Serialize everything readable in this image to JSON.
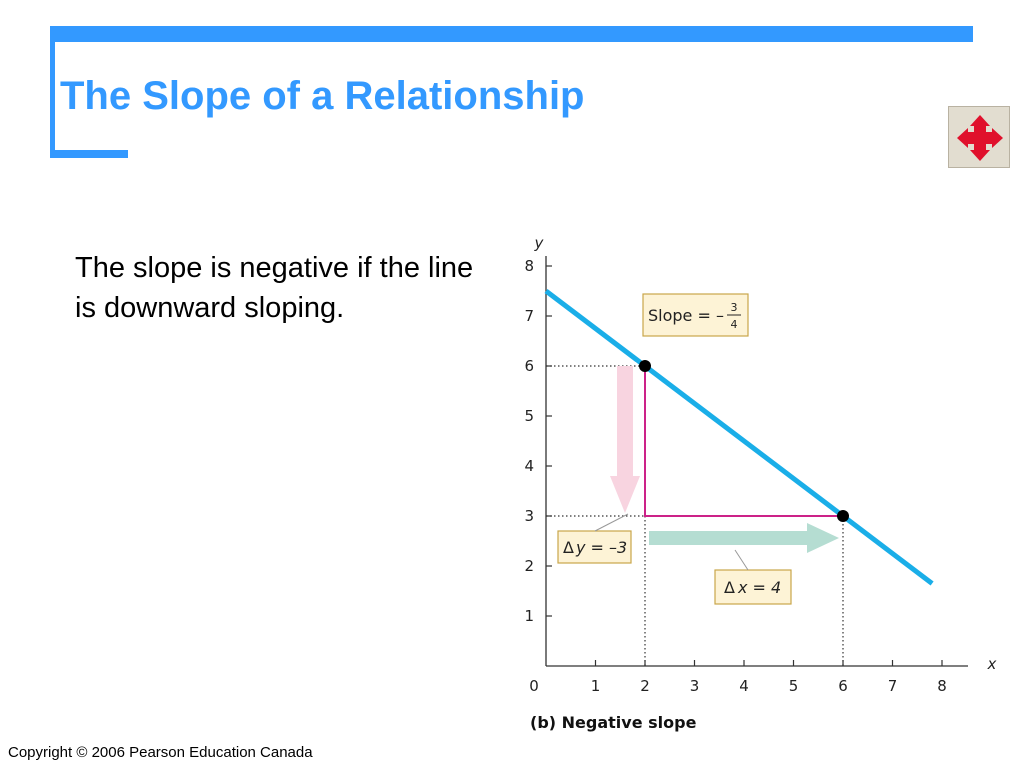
{
  "slide": {
    "title": "The Slope of a Relationship",
    "body_text": "The slope is negative if the line is downward sloping.",
    "copyright": "Copyright © 2006 Pearson Education Canada",
    "nav_icon": "move-arrows-icon"
  },
  "colors": {
    "accent": "#3399ff",
    "line": "#1aaee8",
    "riser": "#cc2288",
    "label_box_fill": "#fdf3d6",
    "label_box_border": "#c9a64a",
    "dy_arrow": "#f8d4e0",
    "dx_arrow": "#b5ddd2",
    "nav_arrows": "#e0102c"
  },
  "chart_data": {
    "type": "line",
    "title": "",
    "caption": "(b) Negative slope",
    "xlabel": "x",
    "ylabel": "y",
    "xlim": [
      0,
      8
    ],
    "ylim": [
      0,
      8
    ],
    "x_ticks": [
      0,
      1,
      2,
      3,
      4,
      5,
      6,
      7,
      8
    ],
    "y_ticks": [
      1,
      2,
      3,
      4,
      5,
      6,
      7,
      8
    ],
    "line": {
      "x": [
        0,
        7.8
      ],
      "y": [
        7.5,
        1.65
      ]
    },
    "points": [
      {
        "x": 2,
        "y": 6
      },
      {
        "x": 6,
        "y": 3
      }
    ],
    "annotations": {
      "slope_label": "Slope = –",
      "slope_num": "3",
      "slope_den": "4",
      "dy_label": "y = –3",
      "dx_label": "x = 4",
      "delta": "Δ"
    }
  }
}
